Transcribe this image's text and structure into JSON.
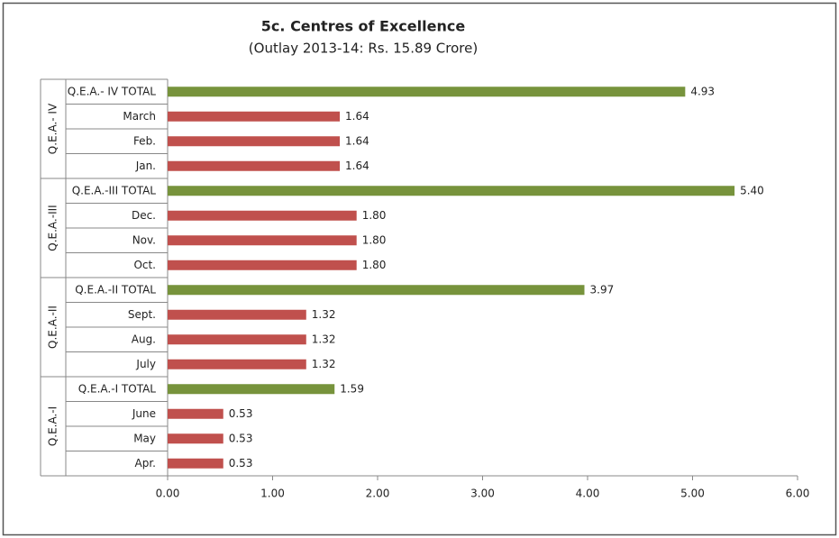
{
  "chart_data": {
    "type": "bar",
    "orientation": "horizontal",
    "title": "5c. Centres of Excellence",
    "subtitle": "(Outlay 2013-14: Rs. 15.89 Crore)",
    "groups": [
      {
        "name": "Q.E.A.- IV",
        "categories": [
          "Q.E.A.- IV TOTAL",
          "March",
          "Feb.",
          "Jan."
        ],
        "values": [
          4.93,
          1.64,
          1.64,
          1.64
        ],
        "value_labels": [
          "4.93",
          "1.64",
          "1.64",
          "1.64"
        ],
        "colors": [
          "#77933c",
          "#c0504d",
          "#c0504d",
          "#c0504d"
        ]
      },
      {
        "name": "Q.E.A.-III",
        "categories": [
          "Q.E.A.-III TOTAL",
          "Dec.",
          "Nov.",
          "Oct."
        ],
        "values": [
          5.4,
          1.8,
          1.8,
          1.8
        ],
        "value_labels": [
          "5.40",
          "1.80",
          "1.80",
          "1.80"
        ],
        "colors": [
          "#77933c",
          "#c0504d",
          "#c0504d",
          "#c0504d"
        ]
      },
      {
        "name": "Q.E.A.-II",
        "categories": [
          "Q.E.A.-II TOTAL",
          "Sept.",
          "Aug.",
          "July"
        ],
        "values": [
          3.97,
          1.32,
          1.32,
          1.32
        ],
        "value_labels": [
          "3.97",
          "1.32",
          "1.32",
          "1.32"
        ],
        "colors": [
          "#77933c",
          "#c0504d",
          "#c0504d",
          "#c0504d"
        ]
      },
      {
        "name": "Q.E.A.-I",
        "categories": [
          "Q.E.A.-I TOTAL",
          "June",
          "May",
          "Apr."
        ],
        "values": [
          1.59,
          0.53,
          0.53,
          0.53
        ],
        "value_labels": [
          "1.59",
          "0.53",
          "0.53",
          "0.53"
        ],
        "colors": [
          "#77933c",
          "#c0504d",
          "#c0504d",
          "#c0504d"
        ]
      }
    ],
    "xlim": [
      0,
      6
    ],
    "xticks": [
      {
        "value": 0,
        "label": "0.00"
      },
      {
        "value": 1,
        "label": "1.00"
      },
      {
        "value": 2,
        "label": "2.00"
      },
      {
        "value": 3,
        "label": "3.00"
      },
      {
        "value": 4,
        "label": "4.00"
      },
      {
        "value": 5,
        "label": "5.00"
      },
      {
        "value": 6,
        "label": "6.00"
      }
    ],
    "grid": false
  }
}
